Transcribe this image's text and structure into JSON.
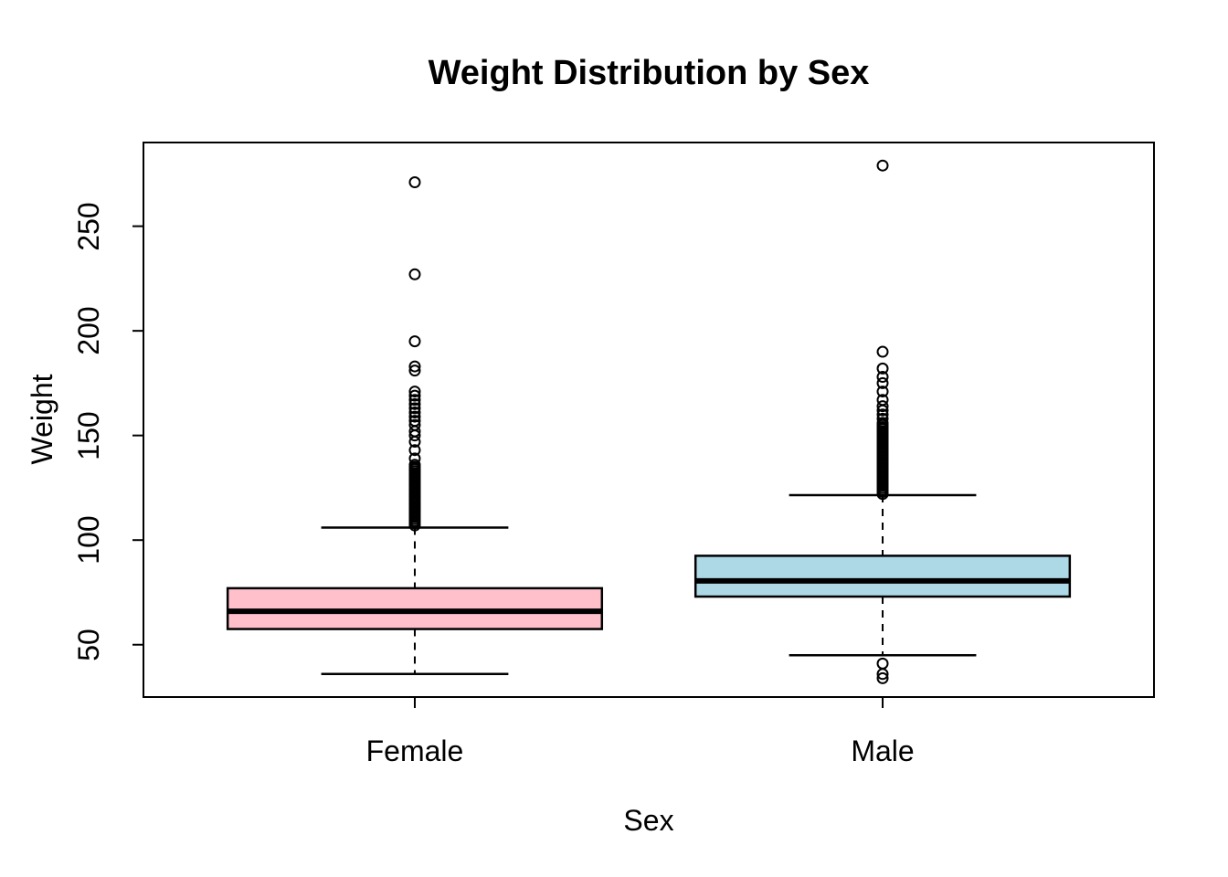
{
  "chart_data": {
    "type": "boxplot",
    "title": "Weight Distribution by Sex",
    "xlabel": "Sex",
    "ylabel": "Weight",
    "categories": [
      "Female",
      "Male"
    ],
    "ylim": [
      25,
      290
    ],
    "yticks": [
      50,
      100,
      150,
      200,
      250
    ],
    "grid": false,
    "legend": "none",
    "colors": {
      "stroke": "#000000",
      "background": "#FFFFFF"
    },
    "series": [
      {
        "name": "Female",
        "fill": "#FFC0CB",
        "whisker_low": 36,
        "q1": 57.5,
        "median": 66,
        "q3": 77,
        "whisker_high": 106,
        "outliers": [
          107,
          108,
          109,
          110,
          111,
          112,
          113,
          114,
          115,
          116,
          117,
          118,
          119,
          120,
          121,
          122,
          123,
          124,
          125,
          126,
          127,
          128,
          129,
          130,
          131,
          132,
          133,
          134,
          135,
          136,
          139,
          143,
          147,
          150,
          152,
          155,
          157,
          159,
          161,
          163,
          165,
          167,
          169,
          171,
          181,
          183,
          195,
          227,
          271
        ]
      },
      {
        "name": "Male",
        "fill": "#ADD8E6",
        "whisker_low": 45,
        "q1": 73,
        "median": 80.5,
        "q3": 92.5,
        "whisker_high": 121.5,
        "outliers": [
          34,
          36,
          41,
          122,
          123,
          124,
          125,
          126,
          127,
          128,
          129,
          130,
          131,
          132,
          133,
          134,
          135,
          136,
          137,
          138,
          139,
          140,
          141,
          142,
          143,
          144,
          145,
          146,
          147,
          148,
          149,
          150,
          151,
          152,
          153,
          154,
          155,
          156,
          158,
          160,
          162,
          164,
          167,
          171,
          175,
          178,
          182,
          190,
          279
        ]
      }
    ]
  }
}
